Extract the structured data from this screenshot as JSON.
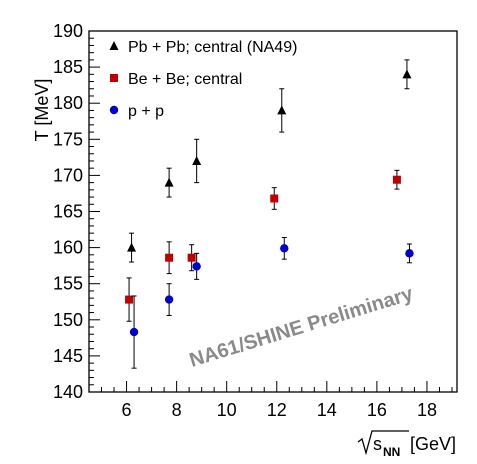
{
  "chart_data": {
    "type": "scatter",
    "title": "",
    "xlabel": "[GeV]",
    "xlabel_symbol": "s",
    "xlabel_subscript": "NN",
    "ylabel": "T [MeV]",
    "xlim": [
      4.5,
      19.2
    ],
    "ylim": [
      140,
      190
    ],
    "x_ticks": [
      6,
      8,
      10,
      12,
      14,
      16,
      18
    ],
    "y_ticks": [
      140,
      145,
      150,
      155,
      160,
      165,
      170,
      175,
      180,
      185,
      190
    ],
    "grid": false,
    "legend_position": "top-left",
    "annotation": "NA61/SHINE Preliminary",
    "series": [
      {
        "name": "Pb + Pb; central (NA49)",
        "marker": "triangle",
        "color": "#000000",
        "points": [
          {
            "x": 6.2,
            "y": 160,
            "err": 2
          },
          {
            "x": 7.7,
            "y": 169,
            "err": 2
          },
          {
            "x": 8.8,
            "y": 172,
            "err": 3
          },
          {
            "x": 12.2,
            "y": 179,
            "err": 3
          },
          {
            "x": 17.2,
            "y": 184,
            "err": 2
          }
        ]
      },
      {
        "name": "Be + Be; central",
        "marker": "square",
        "color": "#c00000",
        "points": [
          {
            "x": 6.1,
            "y": 152.8,
            "err": 3
          },
          {
            "x": 7.7,
            "y": 158.6,
            "err": 2.2
          },
          {
            "x": 8.6,
            "y": 158.6,
            "err": 1.8
          },
          {
            "x": 11.9,
            "y": 166.8,
            "err": 1.5
          },
          {
            "x": 16.8,
            "y": 169.4,
            "err": 1.3
          }
        ]
      },
      {
        "name": "p + p",
        "marker": "circle",
        "color": "#0000c8",
        "points": [
          {
            "x": 6.3,
            "y": 148.3,
            "err": 5
          },
          {
            "x": 7.7,
            "y": 152.8,
            "err": 2.2
          },
          {
            "x": 8.8,
            "y": 157.4,
            "err": 1.8
          },
          {
            "x": 12.3,
            "y": 159.9,
            "err": 1.5
          },
          {
            "x": 17.3,
            "y": 159.2,
            "err": 1.3
          }
        ]
      }
    ]
  }
}
